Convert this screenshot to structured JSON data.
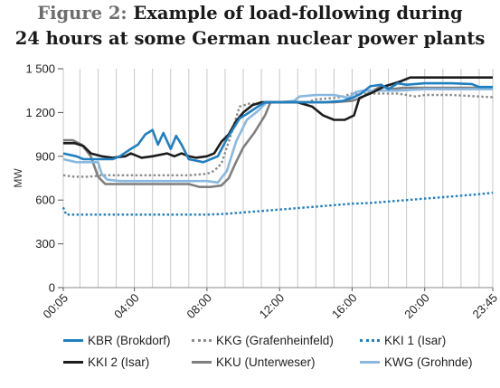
{
  "title": {
    "prefix": "Figure 2:",
    "line1": "Example of load-following during",
    "line2": "24 hours at some German nuclear power plants"
  },
  "chart_data": {
    "type": "line",
    "ylabel": "MW",
    "xlabel": "",
    "ylim": [
      0,
      1500
    ],
    "xlim": [
      0.0833,
      23.75
    ],
    "y_ticks": [
      {
        "value": 0,
        "label": "0"
      },
      {
        "value": 300,
        "label": "300"
      },
      {
        "value": 600,
        "label": "600"
      },
      {
        "value": 900,
        "label": "900"
      },
      {
        "value": 1200,
        "label": "1 200"
      },
      {
        "value": 1500,
        "label": "1 500"
      }
    ],
    "x_ticks": [
      {
        "value": 0.0833,
        "label": "00:05"
      },
      {
        "value": 4,
        "label": "04:00"
      },
      {
        "value": 8,
        "label": "08:00"
      },
      {
        "value": 12,
        "label": "12:00"
      },
      {
        "value": 16,
        "label": "16:00"
      },
      {
        "value": 20,
        "label": "20:00"
      },
      {
        "value": 23.75,
        "label": "23:45"
      }
    ],
    "grid": "vertical",
    "legend_position": "bottom",
    "series": [
      {
        "name": "KBR (Brokdorf)",
        "color": "#1f7fc0",
        "style": "solid",
        "points": [
          [
            0.08,
            920
          ],
          [
            0.8,
            900
          ],
          [
            1.2,
            880
          ],
          [
            2.8,
            880
          ],
          [
            3.2,
            900
          ],
          [
            3.8,
            950
          ],
          [
            4.2,
            980
          ],
          [
            4.6,
            1050
          ],
          [
            5,
            1080
          ],
          [
            5.3,
            980
          ],
          [
            5.6,
            1060
          ],
          [
            6,
            950
          ],
          [
            6.3,
            1040
          ],
          [
            6.6,
            980
          ],
          [
            7,
            880
          ],
          [
            7.8,
            860
          ],
          [
            8.6,
            900
          ],
          [
            9.1,
            1020
          ],
          [
            9.4,
            1080
          ],
          [
            9.8,
            1160
          ],
          [
            10.2,
            1190
          ],
          [
            10.8,
            1240
          ],
          [
            11.2,
            1270
          ],
          [
            12,
            1270
          ],
          [
            13,
            1270
          ],
          [
            14,
            1270
          ],
          [
            14.5,
            1270
          ],
          [
            15.5,
            1280
          ],
          [
            16,
            1300
          ],
          [
            16.5,
            1330
          ],
          [
            17,
            1380
          ],
          [
            17.6,
            1390
          ],
          [
            18,
            1360
          ],
          [
            18.5,
            1400
          ],
          [
            19,
            1390
          ],
          [
            20,
            1400
          ],
          [
            21.5,
            1400
          ],
          [
            22.6,
            1395
          ],
          [
            23,
            1375
          ],
          [
            23.75,
            1375
          ]
        ]
      },
      {
        "name": "KKG (Grafenheinfeld)",
        "color": "#8c8c8c",
        "style": "dotted",
        "points": [
          [
            0.08,
            770
          ],
          [
            0.7,
            760
          ],
          [
            1.5,
            760
          ],
          [
            2.2,
            770
          ],
          [
            5,
            770
          ],
          [
            7,
            770
          ],
          [
            8,
            780
          ],
          [
            8.4,
            800
          ],
          [
            8.8,
            850
          ],
          [
            9.2,
            1000
          ],
          [
            9.8,
            1240
          ],
          [
            10.3,
            1260
          ],
          [
            11,
            1260
          ],
          [
            11.5,
            1270
          ],
          [
            13,
            1270
          ],
          [
            13.5,
            1270
          ],
          [
            14,
            1290
          ],
          [
            15,
            1300
          ],
          [
            15.5,
            1310
          ],
          [
            16,
            1330
          ],
          [
            17,
            1330
          ],
          [
            18.5,
            1330
          ],
          [
            19.5,
            1310
          ],
          [
            20,
            1320
          ],
          [
            21.5,
            1320
          ],
          [
            23,
            1310
          ],
          [
            23.75,
            1305
          ]
        ]
      },
      {
        "name": "KKI 1 (Isar)",
        "color": "#1f7fc0",
        "style": "dotted",
        "points": [
          [
            0.08,
            550
          ],
          [
            0.25,
            500
          ],
          [
            2,
            500
          ],
          [
            4,
            500
          ],
          [
            6,
            500
          ],
          [
            8,
            500
          ],
          [
            9,
            505
          ],
          [
            10,
            515
          ],
          [
            11,
            525
          ],
          [
            12,
            535
          ],
          [
            13,
            545
          ],
          [
            14,
            555
          ],
          [
            15,
            565
          ],
          [
            16,
            575
          ],
          [
            17,
            580
          ],
          [
            18,
            590
          ],
          [
            19,
            600
          ],
          [
            20,
            610
          ],
          [
            21,
            620
          ],
          [
            22,
            630
          ],
          [
            23,
            640
          ],
          [
            23.75,
            650
          ]
        ]
      },
      {
        "name": "KKI 2 (Isar)",
        "color": "#1c1c1c",
        "style": "solid",
        "points": [
          [
            0.08,
            990
          ],
          [
            0.7,
            990
          ],
          [
            1.2,
            970
          ],
          [
            1.6,
            920
          ],
          [
            2.2,
            900
          ],
          [
            2.8,
            890
          ],
          [
            3.5,
            900
          ],
          [
            3.8,
            920
          ],
          [
            4.4,
            890
          ],
          [
            5,
            900
          ],
          [
            5.8,
            920
          ],
          [
            6.2,
            900
          ],
          [
            6.6,
            920
          ],
          [
            7,
            900
          ],
          [
            7.4,
            890
          ],
          [
            8,
            900
          ],
          [
            8.4,
            920
          ],
          [
            8.8,
            1000
          ],
          [
            9.2,
            1050
          ],
          [
            9.6,
            1140
          ],
          [
            10,
            1200
          ],
          [
            10.5,
            1250
          ],
          [
            11,
            1270
          ],
          [
            12,
            1270
          ],
          [
            13,
            1270
          ],
          [
            13.8,
            1240
          ],
          [
            14.4,
            1180
          ],
          [
            15,
            1150
          ],
          [
            15.6,
            1150
          ],
          [
            16.1,
            1180
          ],
          [
            16.4,
            1300
          ],
          [
            17,
            1330
          ],
          [
            17.8,
            1380
          ],
          [
            18.6,
            1410
          ],
          [
            19.2,
            1440
          ],
          [
            20,
            1440
          ],
          [
            22,
            1440
          ],
          [
            23.2,
            1440
          ],
          [
            23.75,
            1440
          ]
        ]
      },
      {
        "name": "KKU (Unterweser)",
        "color": "#7f7f7f",
        "style": "solid",
        "points": [
          [
            0.08,
            1010
          ],
          [
            0.6,
            1010
          ],
          [
            1.1,
            980
          ],
          [
            1.6,
            900
          ],
          [
            2,
            760
          ],
          [
            2.4,
            710
          ],
          [
            3.5,
            710
          ],
          [
            5,
            710
          ],
          [
            7,
            710
          ],
          [
            7.6,
            690
          ],
          [
            8.2,
            690
          ],
          [
            8.8,
            700
          ],
          [
            9.2,
            750
          ],
          [
            9.6,
            860
          ],
          [
            10,
            960
          ],
          [
            10.6,
            1060
          ],
          [
            11.2,
            1180
          ],
          [
            11.5,
            1270
          ],
          [
            12,
            1270
          ],
          [
            13,
            1270
          ],
          [
            13.6,
            1270
          ],
          [
            14,
            1270
          ],
          [
            15,
            1270
          ],
          [
            16,
            1280
          ],
          [
            16.5,
            1300
          ],
          [
            17,
            1340
          ],
          [
            17.6,
            1380
          ],
          [
            18.2,
            1360
          ],
          [
            18.8,
            1370
          ],
          [
            20,
            1370
          ],
          [
            22,
            1370
          ],
          [
            23.75,
            1370
          ]
        ]
      },
      {
        "name": "KWG (Grohnde)",
        "color": "#8ab8e0",
        "style": "solid",
        "points": [
          [
            0.08,
            880
          ],
          [
            0.8,
            860
          ],
          [
            2,
            860
          ],
          [
            2.2,
            780
          ],
          [
            2.5,
            740
          ],
          [
            3.2,
            730
          ],
          [
            4.5,
            730
          ],
          [
            6,
            730
          ],
          [
            8,
            730
          ],
          [
            8.6,
            720
          ],
          [
            9.1,
            800
          ],
          [
            9.6,
            1000
          ],
          [
            10.2,
            1150
          ],
          [
            10.8,
            1210
          ],
          [
            11.3,
            1270
          ],
          [
            12,
            1270
          ],
          [
            12.8,
            1280
          ],
          [
            13.1,
            1310
          ],
          [
            14,
            1320
          ],
          [
            15,
            1320
          ],
          [
            15.8,
            1300
          ],
          [
            16.2,
            1340
          ],
          [
            16.6,
            1350
          ],
          [
            17.6,
            1350
          ],
          [
            18.5,
            1350
          ],
          [
            20,
            1360
          ],
          [
            22,
            1360
          ],
          [
            23.75,
            1360
          ]
        ]
      }
    ]
  }
}
